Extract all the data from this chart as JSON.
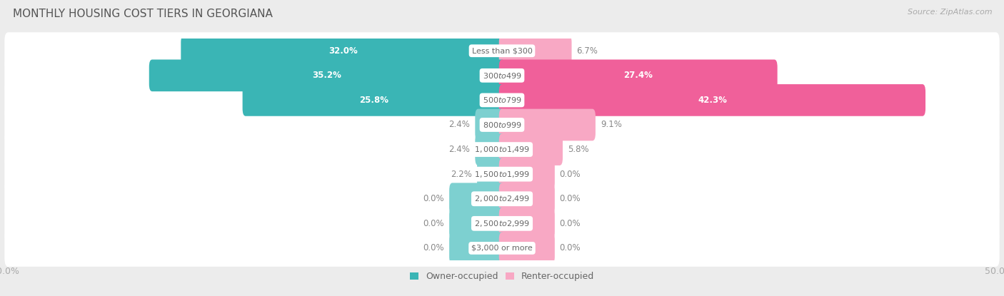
{
  "title": "MONTHLY HOUSING COST TIERS IN GEORGIANA",
  "source": "Source: ZipAtlas.com",
  "categories": [
    "Less than $300",
    "$300 to $499",
    "$500 to $799",
    "$800 to $999",
    "$1,000 to $1,499",
    "$1,500 to $1,999",
    "$2,000 to $2,499",
    "$2,500 to $2,999",
    "$3,000 or more"
  ],
  "owner_values": [
    32.0,
    35.2,
    25.8,
    2.4,
    2.4,
    2.2,
    0.0,
    0.0,
    0.0
  ],
  "renter_values": [
    6.7,
    27.4,
    42.3,
    9.1,
    5.8,
    0.0,
    0.0,
    0.0,
    0.0
  ],
  "owner_color_large": "#3ab5b5",
  "owner_color_small": "#7dd0d0",
  "renter_color_large": "#f0609a",
  "renter_color_small": "#f8a8c4",
  "background_color": "#ececec",
  "row_bg_color": "#ffffff",
  "axis_limit": 50.0,
  "title_fontsize": 11,
  "source_fontsize": 8,
  "label_fontsize": 9,
  "bar_label_fontsize": 8.5,
  "category_fontsize": 8,
  "legend_fontsize": 9,
  "large_threshold": 10.0,
  "min_bar_width": 5.0
}
